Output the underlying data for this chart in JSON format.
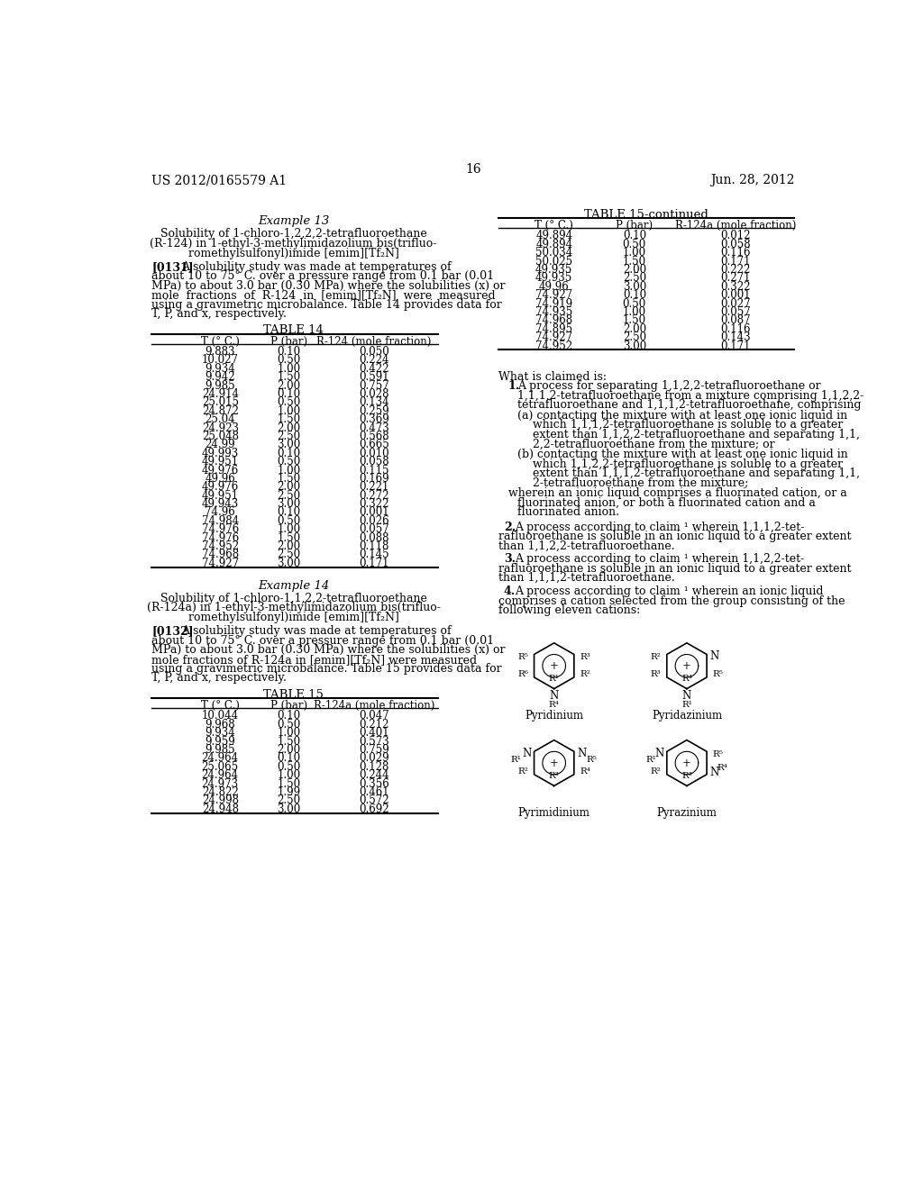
{
  "page_header_left": "US 2012/0165579 A1",
  "page_header_right": "Jun. 28, 2012",
  "page_number": "16",
  "background_color": "#ffffff",
  "example13_title": "Example 13",
  "example13_subtitle1": "Solubility of 1-chloro-1,2,2,2-tetrafluoroethane",
  "example13_subtitle2": "(R-124) in 1-ethyl-3-methylimidazolium bis(trifluo-",
  "example13_subtitle3": "romethylsulfonyl)imide [emim][Tf₂N]",
  "example13_para_tag": "[0131]",
  "example13_para_lines": [
    "A solubility study was made at temperatures of",
    "about 10 to 75° C. over a pressure range from 0.1 bar (0.01",
    "MPa) to about 3.0 bar (0.30 MPa) where the solubilities (x) or",
    "mole  fractions  of  R-124  in  [emim][Tf₂N]  were  measured",
    "using a gravimetric microbalance. Table 14 provides data for",
    "T, P, and x, respectively."
  ],
  "table14_title": "TABLE 14",
  "table14_col1": "T (° C.)",
  "table14_col2": "P (bar)",
  "table14_col3": "R-124 (mole fraction)",
  "table14_data": [
    [
      "9.883",
      "0.10",
      "0.050"
    ],
    [
      "10.027",
      "0.50",
      "0.224"
    ],
    [
      "9.934",
      "1.00",
      "0.422"
    ],
    [
      "9.942",
      "1.50",
      "0.591"
    ],
    [
      "9.985",
      "2.00",
      "0.757"
    ],
    [
      "24.914",
      "0.10",
      "0.028"
    ],
    [
      "25.015",
      "0.50",
      "0.134"
    ],
    [
      "24.872",
      "1.00",
      "0.259"
    ],
    [
      "25.04",
      "1.50",
      "0.369"
    ],
    [
      "24.923",
      "2.00",
      "0.473"
    ],
    [
      "25.048",
      "2.50",
      "0.568"
    ],
    [
      "24.99",
      "3.00",
      "0.665"
    ],
    [
      "49.993",
      "0.10",
      "0.010"
    ],
    [
      "49.951",
      "0.50",
      "0.058"
    ],
    [
      "49.976",
      "1.00",
      "0.115"
    ],
    [
      "49.96",
      "1.50",
      "0.169"
    ],
    [
      "49.976",
      "2.00",
      "0.221"
    ],
    [
      "49.951",
      "2.50",
      "0.272"
    ],
    [
      "49.943",
      "3.00",
      "0.322"
    ],
    [
      "74.96",
      "0.10",
      "0.001"
    ],
    [
      "74.984",
      "0.50",
      "0.026"
    ],
    [
      "74.976",
      "1.00",
      "0.057"
    ],
    [
      "74.976",
      "1.50",
      "0.088"
    ],
    [
      "74.952",
      "2.00",
      "0.118"
    ],
    [
      "74.968",
      "2.50",
      "0.145"
    ],
    [
      "74.927",
      "3.00",
      "0.171"
    ]
  ],
  "example14_title": "Example 14",
  "example14_subtitle1": "Solubility of 1-chloro-1,1,2,2-tetrafluoroethane",
  "example14_subtitle2": "(R-124a) in 1-ethyl-3-methylimidazolium bis(trifluo-",
  "example14_subtitle3": "romethylsulfonyl)imide [emim][Tf₂N]",
  "example14_para_tag": "[0132]",
  "example14_para_lines": [
    "A solubility study was made at temperatures of",
    "about 10 to 75° C. over a pressure range from 0.1 bar (0.01",
    "MPa) to about 3.0 bar (0.30 MPa) where the solubilities (x) or",
    "mole fractions of R-124a in [emim][Tf₂N] were measured",
    "using a gravimetric microbalance. Table 15 provides data for",
    "T, P, and x, respectively."
  ],
  "table15_title": "TABLE 15",
  "table15_col1": "T (° C.)",
  "table15_col2": "P (bar)",
  "table15_col3": "R-124a (mole fraction)",
  "table15_data": [
    [
      "10.044",
      "0.10",
      "0.047"
    ],
    [
      "9.968",
      "0.50",
      "0.212"
    ],
    [
      "9.934",
      "1.00",
      "0.401"
    ],
    [
      "9.959",
      "1.50",
      "0.573"
    ],
    [
      "9.985",
      "2.00",
      "0.759"
    ],
    [
      "24.964",
      "0.10",
      "0.029"
    ],
    [
      "25.065",
      "0.50",
      "0.128"
    ],
    [
      "24.964",
      "1.00",
      "0.244"
    ],
    [
      "24.973",
      "1.50",
      "0.356"
    ],
    [
      "24.822",
      "1.99",
      "0.461"
    ],
    [
      "24.998",
      "2.50",
      "0.572"
    ],
    [
      "24.948",
      "3.00",
      "0.692"
    ]
  ],
  "table15cont_title": "TABLE 15-continued",
  "table15cont_col1": "T (° C.)",
  "table15cont_col2": "P (bar)",
  "table15cont_col3": "R-124a (mole fraction)",
  "table15cont_data": [
    [
      "49.894",
      "0.10",
      "0.012"
    ],
    [
      "49.894",
      "0.50",
      "0.058"
    ],
    [
      "50.034",
      "1.00",
      "0.116"
    ],
    [
      "50.025",
      "1.50",
      "0.171"
    ],
    [
      "49.935",
      "2.00",
      "0.222"
    ],
    [
      "49.935",
      "2.50",
      "0.271"
    ],
    [
      "49.96",
      "3.00",
      "0.322"
    ],
    [
      "74.927",
      "0.10",
      "0.001"
    ],
    [
      "74.919",
      "0.50",
      "0.027"
    ],
    [
      "74.935",
      "1.00",
      "0.057"
    ],
    [
      "74.968",
      "1.50",
      "0.087"
    ],
    [
      "74.895",
      "2.00",
      "0.116"
    ],
    [
      "74.927",
      "2.50",
      "0.143"
    ],
    [
      "74.952",
      "3.00",
      "0.171"
    ]
  ],
  "claims_header": "What is claimed is:",
  "claim1_num": "1.",
  "claim1_text_lines": [
    "A process for separating 1,1,2,2-tetrafluoroethane or",
    "1,1,1,2-tetrafluoroethane from a mixture comprising 1,1,2,2-",
    "tetrafluoroethane and 1,1,1,2-tetrafluoroethane, comprising"
  ],
  "claim1a_lines": [
    "(a) contacting the mixture with at least one ionic liquid in",
    "which 1,1,1,2-tetrafluoroethane is soluble to a greater",
    "extent than 1,1,2,2-tetrafluoroethane and separating 1,1,",
    "2,2-tetrafluoroethane from the mixture; or"
  ],
  "claim1b_lines": [
    "(b) contacting the mixture with at least one ionic liquid in",
    "which 1,1,2,2-tetrafluoroethane is soluble to a greater",
    "extent than 1,1,1,2-tetrafluoroethane and separating 1,1,",
    "2-tetrafluoroethane from the mixture;"
  ],
  "claim1c_lines": [
    "wherein an ionic liquid comprises a fluorinated cation, or a",
    "fluorinated anion, or both a fluorinated cation and a",
    "fluorinated anion."
  ],
  "claim2_num": "2.",
  "claim2_lines": [
    "A process according to claim ¹ wherein 1,1,1,2-tet-",
    "rafluoroethane is soluble in an ionic liquid to a greater extent",
    "than 1,1,2,2-tetrafluoroethane."
  ],
  "claim3_num": "3.",
  "claim3_lines": [
    "A process according to claim ¹ wherein 1,1,2,2-tet-",
    "rafluoroethane is soluble in an ionic liquid to a greater extent",
    "than 1,1,1,2-tetrafluoroethane."
  ],
  "claim4_num": "4.",
  "claim4_lines": [
    "A process according to claim ¹ wherein an ionic liquid",
    "comprises a cation selected from the group consisting of the",
    "following eleven cations:"
  ]
}
